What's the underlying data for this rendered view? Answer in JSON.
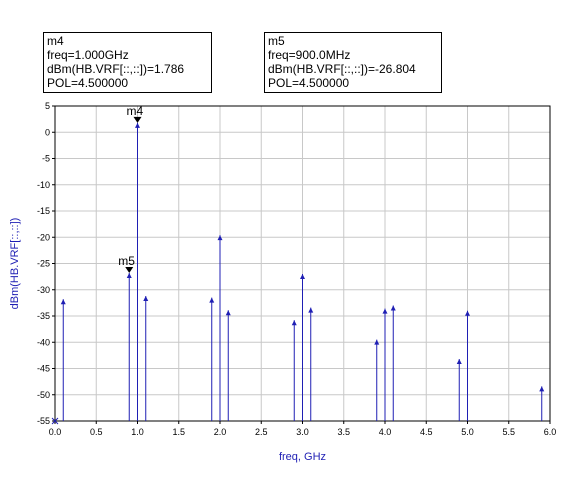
{
  "markers": [
    {
      "id": "m4",
      "name": "m4",
      "lines": [
        "m4",
        "freq=1.000GHz",
        "dBm(HB.VRF[::,::])=1.786",
        "POL=4.500000"
      ],
      "freq_ghz": 1.0,
      "value": 1.786
    },
    {
      "id": "m5",
      "name": "m5",
      "lines": [
        "m5",
        "freq=900.0MHz",
        "dBm(HB.VRF[::,::])=-26.804",
        "POL=4.500000"
      ],
      "freq_ghz": 0.9,
      "value": -26.804
    }
  ],
  "chart_data": {
    "type": "bar",
    "style": "spectrum-stems",
    "xlabel": "freq, GHz",
    "ylabel": "dBm(HB.VRF[::,::])",
    "xlim": [
      0.0,
      6.0
    ],
    "ylim": [
      -55,
      5
    ],
    "x_ticks": [
      "0.0",
      "0.5",
      "1.0",
      "1.5",
      "2.0",
      "2.5",
      "3.0",
      "3.5",
      "4.0",
      "4.5",
      "5.0",
      "5.5",
      "6.0"
    ],
    "y_ticks": [
      "5",
      "0",
      "-5",
      "-10",
      "-15",
      "-20",
      "-25",
      "-30",
      "-35",
      "-40",
      "-45",
      "-50",
      "-55"
    ],
    "grid": true,
    "series_color": "#1f1fb4",
    "points": [
      {
        "x": 0.0,
        "y": -55.0
      },
      {
        "x": 0.1,
        "y": -31.8
      },
      {
        "x": 0.9,
        "y": -26.804
      },
      {
        "x": 1.0,
        "y": 1.786
      },
      {
        "x": 1.1,
        "y": -31.2
      },
      {
        "x": 1.9,
        "y": -31.5
      },
      {
        "x": 2.0,
        "y": -19.6
      },
      {
        "x": 2.1,
        "y": -33.9
      },
      {
        "x": 2.9,
        "y": -35.8
      },
      {
        "x": 3.0,
        "y": -27.0
      },
      {
        "x": 3.1,
        "y": -33.4
      },
      {
        "x": 3.9,
        "y": -39.5
      },
      {
        "x": 4.0,
        "y": -33.6
      },
      {
        "x": 4.1,
        "y": -33.0
      },
      {
        "x": 4.9,
        "y": -43.2
      },
      {
        "x": 5.0,
        "y": -34.0
      },
      {
        "x": 5.9,
        "y": -48.4
      }
    ]
  }
}
